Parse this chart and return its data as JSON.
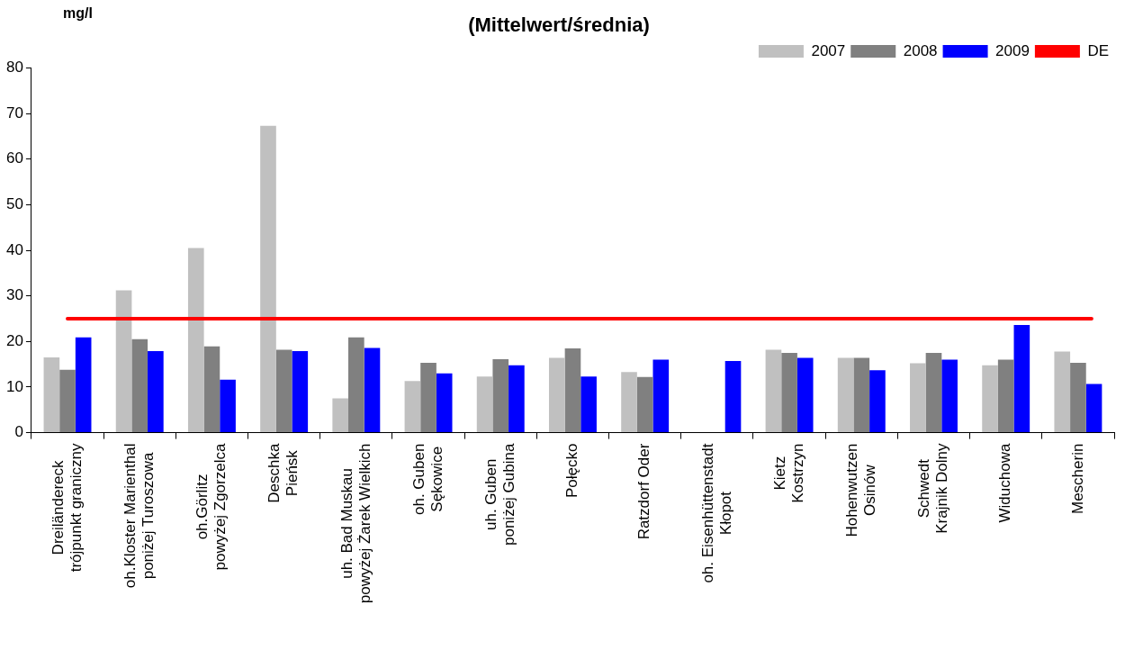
{
  "chart_data": {
    "type": "bar",
    "title": "(Mittelwert/średnia)",
    "ylabel": "mg/l",
    "categories": [
      "Dreiländereck\ntrójpunkt graniczny",
      "oh.Kloster Marienthal\nponiżej Turoszowa",
      "oh.Görlitz\npowyżej Zgorzelca",
      "Deschka\nPieńsk",
      "uh. Bad Muskau\npowyżej Żarek Wielkich",
      "oh. Guben\nSękowice",
      "uh. Guben\nponiżej Gubina",
      "Połęcko",
      "Ratzdorf Oder",
      "oh. Eisenhüttenstadt\nKłopot",
      "Kietz\nKostrzyn",
      "Hohenwutzen\nOsinów",
      "Schwedt\nKrajnik Dolny",
      "Widuchowa",
      "Mescherin"
    ],
    "series": [
      {
        "name": "2007",
        "color": "#c0c0c0",
        "values": [
          16.5,
          31.2,
          40.5,
          67.3,
          7.5,
          11.3,
          12.3,
          16.4,
          13.3,
          null,
          18.2,
          16.4,
          15.2,
          14.8,
          17.8
        ]
      },
      {
        "name": "2008",
        "color": "#808080",
        "values": [
          13.8,
          20.5,
          18.9,
          18.2,
          20.9,
          15.3,
          16.1,
          18.5,
          12.2,
          null,
          17.5,
          16.4,
          17.5,
          16.0,
          15.3
        ]
      },
      {
        "name": "2009",
        "color": "#0000ff",
        "values": [
          20.9,
          17.9,
          11.6,
          17.9,
          18.6,
          13.0,
          14.8,
          12.3,
          16.0,
          15.7,
          16.4,
          13.7,
          16.0,
          23.6,
          10.7
        ]
      }
    ],
    "ref_lines": [
      {
        "axis": "y",
        "value": 25,
        "label": "DE",
        "color": "#ff0000",
        "line_style": "solid"
      }
    ],
    "ylim": [
      0,
      80
    ],
    "yticks": [
      0,
      10,
      20,
      30,
      40,
      50,
      60,
      70,
      80
    ],
    "grid": false,
    "legend": "top right"
  }
}
